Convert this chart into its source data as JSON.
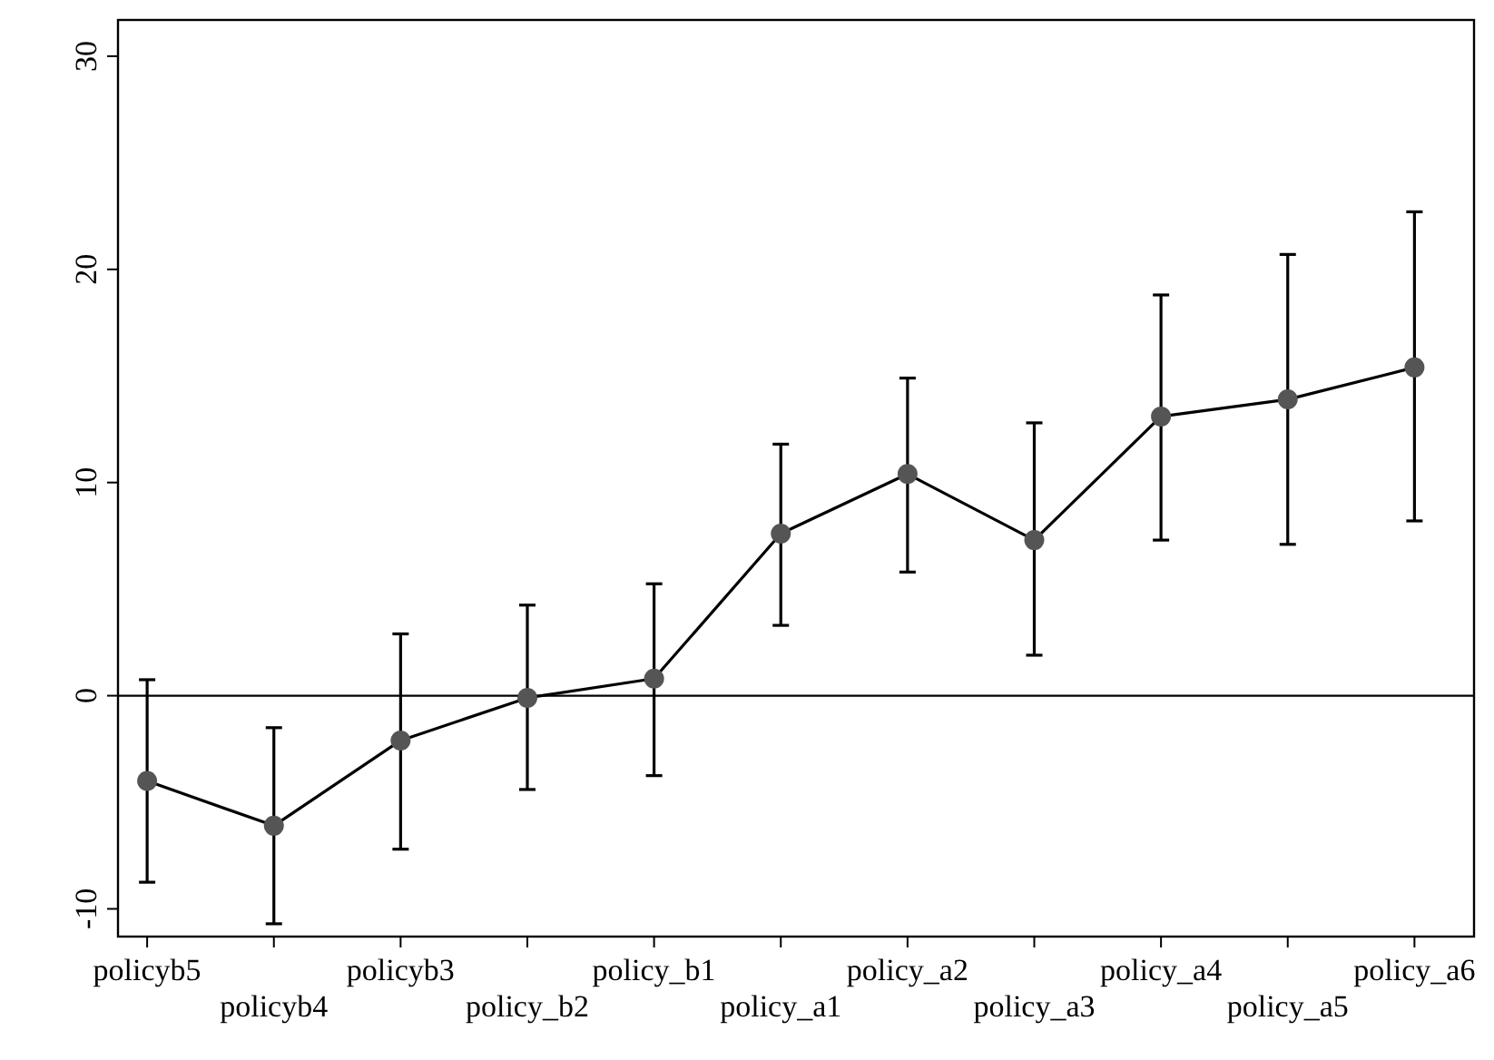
{
  "chart_data": {
    "type": "line",
    "categories": [
      "policyb5",
      "policyb4",
      "policyb3",
      "policy_b2",
      "policy_b1",
      "policy_a1",
      "policy_a2",
      "policy_a3",
      "policy_a4",
      "policy_a5",
      "policy_a6"
    ],
    "series": [
      {
        "color": "#000000",
        "values": [
          -4.0,
          -6.1,
          -2.1,
          -0.1,
          0.8,
          7.6,
          10.4,
          7.3,
          13.1,
          13.9,
          15.4
        ],
        "errors": [
          [
            -8.75,
            0.75
          ],
          [
            -10.7,
            -1.5
          ],
          [
            -7.2,
            2.9
          ],
          [
            -4.4,
            4.25
          ],
          [
            -3.75,
            5.25
          ],
          [
            3.3,
            11.8
          ],
          [
            5.8,
            14.9
          ],
          [
            1.9,
            12.8
          ],
          [
            7.3,
            18.8
          ],
          [
            7.1,
            20.7
          ],
          [
            8.2,
            22.7
          ]
        ]
      }
    ],
    "ylim": [
      -11.3,
      31.7
    ],
    "yticks": [
      -10,
      0,
      10,
      20,
      30
    ],
    "grid": false,
    "marker": "circle",
    "line_style": "solid",
    "ref_lines": [
      {
        "axis": "y",
        "value": 0,
        "color": "#000000"
      }
    ]
  }
}
